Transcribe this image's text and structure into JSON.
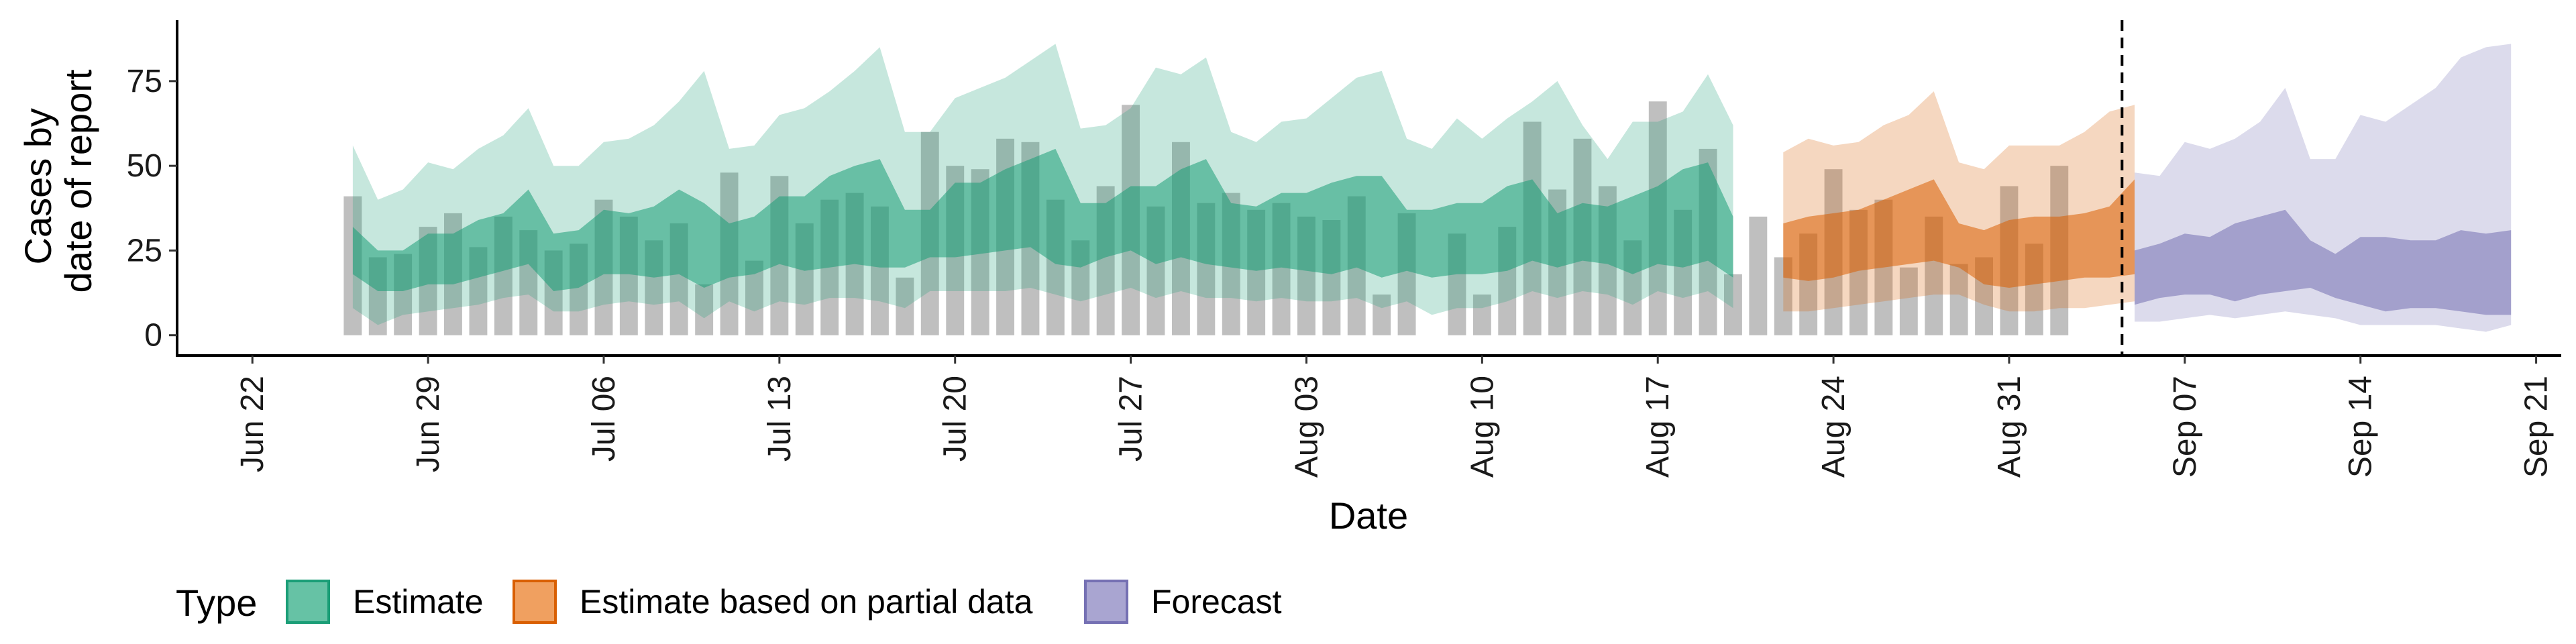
{
  "chart_data": {
    "type": "area",
    "title": "",
    "xlabel": "Date",
    "ylabel_lines": [
      "Cases by",
      "date of report"
    ],
    "ylim": [
      -6,
      93
    ],
    "y_ticks": [
      0,
      25,
      50,
      75
    ],
    "x_range": [
      "2020-06-19",
      "2020-09-22"
    ],
    "x_ticks": [
      {
        "date": "2020-06-22",
        "label": "Jun 22"
      },
      {
        "date": "2020-06-29",
        "label": "Jun 29"
      },
      {
        "date": "2020-07-06",
        "label": "Jul 06"
      },
      {
        "date": "2020-07-13",
        "label": "Jul 13"
      },
      {
        "date": "2020-07-20",
        "label": "Jul 20"
      },
      {
        "date": "2020-07-27",
        "label": "Jul 27"
      },
      {
        "date": "2020-08-03",
        "label": "Aug 03"
      },
      {
        "date": "2020-08-10",
        "label": "Aug 10"
      },
      {
        "date": "2020-08-17",
        "label": "Aug 17"
      },
      {
        "date": "2020-08-24",
        "label": "Aug 24"
      },
      {
        "date": "2020-08-31",
        "label": "Aug 31"
      },
      {
        "date": "2020-09-07",
        "label": "Sep 07"
      },
      {
        "date": "2020-09-14",
        "label": "Sep 14"
      },
      {
        "date": "2020-09-21",
        "label": "Sep 21"
      }
    ],
    "cutoff_date": "2020-09-04",
    "grid": false,
    "legend": {
      "title": "Type",
      "position": "bottom",
      "entries": [
        {
          "label": "Estimate",
          "fill": "#66C2A5",
          "stroke": "#1B9E77"
        },
        {
          "label": "Estimate based on partial data",
          "fill": "#F0A060",
          "stroke": "#D95F02"
        },
        {
          "label": "Forecast",
          "fill": "#A9A5D1",
          "stroke": "#7570B3"
        }
      ]
    },
    "colors": {
      "estimate": "#1B9E77",
      "partial": "#D95F02",
      "forecast": "#7570B3",
      "bars": "#B4B4B4"
    },
    "bars": {
      "start": "2020-06-26",
      "values": [
        41,
        23,
        24,
        32,
        36,
        26,
        35,
        31,
        25,
        27,
        40,
        35,
        28,
        33,
        15,
        48,
        22,
        47,
        33,
        40,
        42,
        38,
        17,
        60,
        50,
        49,
        58,
        57,
        40,
        28,
        44,
        68,
        38,
        57,
        39,
        42,
        37,
        39,
        35,
        34,
        41,
        12,
        36,
        0,
        30,
        12,
        32,
        63,
        43,
        58,
        44,
        28,
        69,
        37,
        55,
        18,
        35,
        23,
        30,
        49,
        37,
        40,
        20,
        35,
        21,
        23,
        44,
        27,
        50
      ]
    },
    "series": [
      {
        "name": "Estimate",
        "start": "2020-06-26",
        "ci90_lower": [
          8,
          3,
          6,
          7,
          8,
          9,
          11,
          12,
          7,
          7,
          9,
          10,
          9,
          10,
          5,
          10,
          7,
          10,
          9,
          11,
          11,
          10,
          8,
          13,
          13,
          13,
          13,
          14,
          12,
          10,
          12,
          14,
          11,
          13,
          11,
          11,
          10,
          11,
          10,
          10,
          11,
          8,
          10,
          6,
          8,
          8,
          10,
          13,
          11,
          13,
          12,
          9,
          13,
          11,
          13,
          8
        ],
        "ci90_upper": [
          56,
          40,
          43,
          51,
          49,
          55,
          59,
          67,
          50,
          50,
          57,
          58,
          62,
          69,
          78,
          55,
          56,
          65,
          67,
          72,
          78,
          85,
          60,
          60,
          70,
          73,
          76,
          81,
          86,
          61,
          62,
          67,
          79,
          77,
          82,
          60,
          57,
          63,
          64,
          70,
          76,
          78,
          58,
          55,
          64,
          58,
          64,
          69,
          75,
          62,
          52,
          63,
          63,
          66,
          77,
          62
        ],
        "ci50_lower": [
          18,
          13,
          13,
          15,
          15,
          17,
          19,
          21,
          13,
          14,
          18,
          18,
          17,
          18,
          14,
          17,
          18,
          21,
          19,
          20,
          21,
          20,
          20,
          23,
          23,
          24,
          25,
          26,
          21,
          20,
          23,
          25,
          21,
          23,
          21,
          20,
          19,
          20,
          19,
          18,
          20,
          17,
          19,
          17,
          18,
          18,
          19,
          22,
          20,
          22,
          21,
          18,
          21,
          20,
          22,
          17
        ],
        "ci50_upper": [
          32,
          25,
          25,
          30,
          30,
          34,
          36,
          43,
          30,
          31,
          37,
          36,
          38,
          43,
          39,
          33,
          35,
          41,
          41,
          47,
          50,
          52,
          37,
          37,
          45,
          45,
          49,
          52,
          55,
          39,
          39,
          44,
          44,
          49,
          52,
          39,
          38,
          42,
          42,
          45,
          47,
          47,
          37,
          37,
          39,
          39,
          44,
          46,
          36,
          39,
          38,
          41,
          44,
          49,
          51,
          35
        ]
      },
      {
        "name": "Estimate based on partial data",
        "start": "2020-08-22",
        "ci90_lower": [
          7,
          7,
          8,
          9,
          10,
          11,
          12,
          12,
          9,
          7,
          7,
          8,
          8,
          9,
          10
        ],
        "ci90_upper": [
          54,
          58,
          56,
          57,
          62,
          65,
          72,
          51,
          49,
          56,
          56,
          56,
          60,
          66,
          68
        ],
        "ci50_lower": [
          17,
          16,
          17,
          19,
          20,
          21,
          22,
          20,
          15,
          14,
          15,
          16,
          17,
          17,
          18
        ],
        "ci50_upper": [
          33,
          35,
          36,
          37,
          40,
          43,
          46,
          33,
          31,
          34,
          35,
          35,
          36,
          38,
          46
        ]
      },
      {
        "name": "Forecast",
        "start": "2020-09-05",
        "ci90_lower": [
          4,
          4,
          5,
          6,
          5,
          6,
          7,
          6,
          5,
          3,
          3,
          3,
          3,
          2,
          1,
          3
        ],
        "ci90_upper": [
          48,
          47,
          57,
          55,
          58,
          63,
          73,
          52,
          52,
          65,
          63,
          68,
          73,
          82,
          85,
          86
        ],
        "ci50_lower": [
          9,
          11,
          12,
          12,
          10,
          12,
          13,
          14,
          11,
          9,
          7,
          8,
          8,
          7,
          6,
          6
        ],
        "ci50_upper": [
          25,
          27,
          30,
          29,
          33,
          35,
          37,
          28,
          24,
          29,
          29,
          28,
          28,
          31,
          30,
          31
        ]
      }
    ]
  }
}
